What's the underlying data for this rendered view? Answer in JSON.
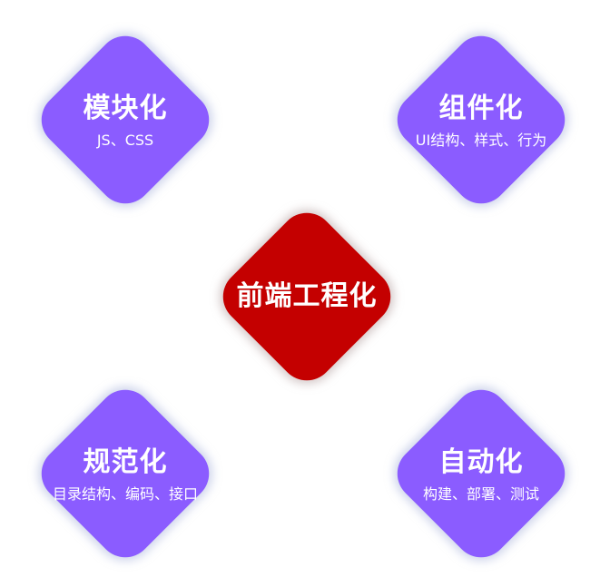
{
  "center": {
    "title": "前端工程化",
    "color": "#c40000"
  },
  "nodes": {
    "modular": {
      "title": "模块化",
      "subtitle": "JS、CSS"
    },
    "component": {
      "title": "组件化",
      "subtitle": "UI结构、样式、行为"
    },
    "standard": {
      "title": "规范化",
      "subtitle": "目录结构、编码、接口"
    },
    "automation": {
      "title": "自动化",
      "subtitle": "构建、部署、测试"
    }
  },
  "colors": {
    "node": "#8b5cff",
    "center": "#c40000",
    "text": "#ffffff"
  }
}
